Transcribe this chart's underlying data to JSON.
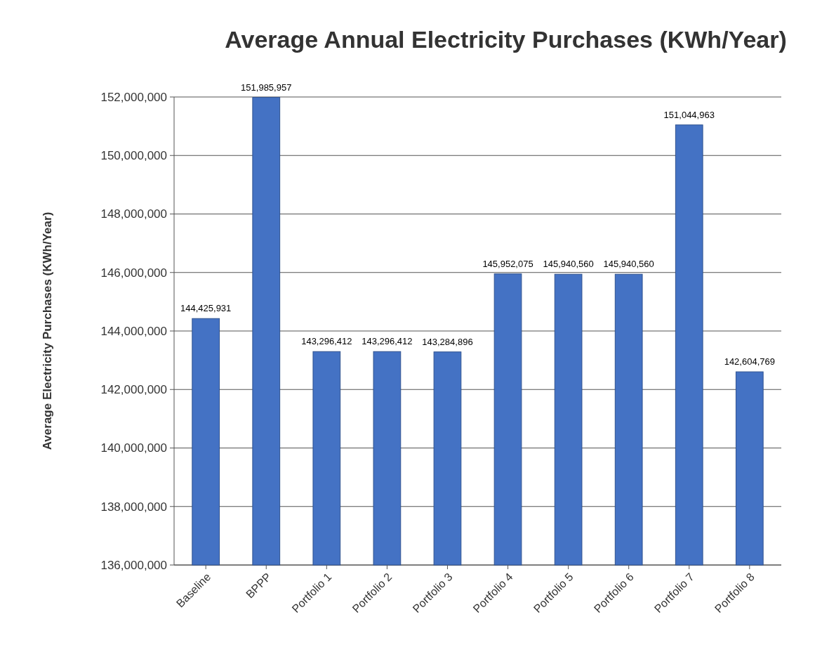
{
  "chart_data": {
    "type": "bar",
    "title": "Average Annual Electricity Purchases (KWh/Year)",
    "ylabel": "Average Electricity Purchases (KWh/Year)",
    "categories": [
      "Baseline",
      "BPPP",
      "Portfolio 1",
      "Portfolio 2",
      "Portfolio 3",
      "Portfolio 4",
      "Portfolio 5",
      "Portfolio 6",
      "Portfolio 7",
      "Portfolio 8"
    ],
    "values": [
      144425931,
      151985957,
      143296412,
      143296412,
      143284896,
      145952075,
      145940560,
      145940560,
      151044963,
      142604769
    ],
    "color": "#4472c4",
    "ylim": [
      136000000,
      152000000
    ],
    "yticks": [
      {
        "value": 136000000,
        "label": "136,000,000"
      },
      {
        "value": 138000000,
        "label": "138,000,000"
      },
      {
        "value": 140000000,
        "label": "140,000,000"
      },
      {
        "value": 142000000,
        "label": "142,000,000"
      },
      {
        "value": 144000000,
        "label": "144,000,000"
      },
      {
        "value": 146000000,
        "label": "146,000,000"
      },
      {
        "value": 148000000,
        "label": "148,000,000"
      },
      {
        "value": 150000000,
        "label": "150,000,000"
      },
      {
        "value": 152000000,
        "label": "152,000,000"
      }
    ],
    "grid": "y",
    "value_labels": [
      "144,425,931",
      "151,985,957",
      "143,296,412",
      "143,296,412",
      "143,284,896",
      "145,952,075",
      "145,940,560",
      "145,940,560",
      "151,044,963",
      "142,604,769"
    ]
  }
}
